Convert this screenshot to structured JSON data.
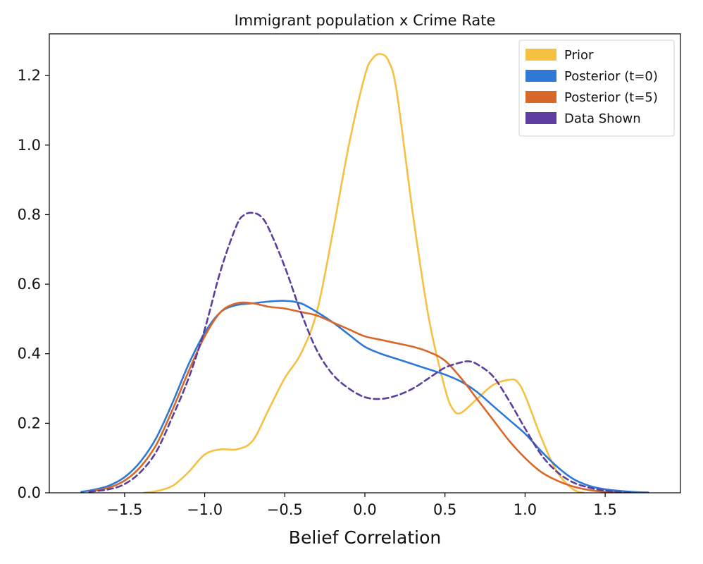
{
  "chart_data": {
    "type": "line",
    "title": "Immigrant population x Crime Rate",
    "xlabel": "Belief Correlation",
    "ylabel": "",
    "xlim": [
      -1.97,
      1.97
    ],
    "ylim": [
      0,
      1.32
    ],
    "xticks": [
      -1.5,
      -1.0,
      -0.5,
      0.0,
      0.5,
      1.0,
      1.5
    ],
    "xtick_labels": [
      "−1.5",
      "−1.0",
      "−0.5",
      "0.0",
      "0.5",
      "1.0",
      "1.5"
    ],
    "yticks": [
      0.0,
      0.2,
      0.4,
      0.6,
      0.8,
      1.0,
      1.2
    ],
    "ytick_labels": [
      "0.0",
      "0.2",
      "0.4",
      "0.6",
      "0.8",
      "1.0",
      "1.2"
    ],
    "grid": false,
    "legend": "top-right",
    "series": [
      {
        "name": "Prior",
        "color": "#F6C142",
        "dash": false,
        "x": [
          -1.38,
          -1.3,
          -1.2,
          -1.1,
          -1.0,
          -0.9,
          -0.8,
          -0.7,
          -0.6,
          -0.5,
          -0.4,
          -0.3,
          -0.2,
          -0.1,
          0.0,
          0.05,
          0.1,
          0.15,
          0.2,
          0.3,
          0.4,
          0.5,
          0.55,
          0.6,
          0.7,
          0.8,
          0.9,
          0.95,
          1.0,
          1.1,
          1.2,
          1.3,
          1.37
        ],
        "y": [
          0.0,
          0.005,
          0.02,
          0.06,
          0.11,
          0.125,
          0.125,
          0.15,
          0.24,
          0.33,
          0.4,
          0.52,
          0.75,
          1.0,
          1.2,
          1.25,
          1.262,
          1.24,
          1.15,
          0.8,
          0.5,
          0.3,
          0.24,
          0.23,
          0.27,
          0.31,
          0.325,
          0.32,
          0.28,
          0.16,
          0.06,
          0.01,
          0.0
        ]
      },
      {
        "name": "Posterior (t=0)",
        "color": "#2E78D6",
        "dash": false,
        "x": [
          -1.77,
          -1.7,
          -1.6,
          -1.5,
          -1.4,
          -1.3,
          -1.2,
          -1.1,
          -1.0,
          -0.9,
          -0.8,
          -0.7,
          -0.6,
          -0.5,
          -0.4,
          -0.3,
          -0.2,
          -0.1,
          0.0,
          0.1,
          0.2,
          0.3,
          0.4,
          0.5,
          0.6,
          0.7,
          0.8,
          0.9,
          1.0,
          1.1,
          1.2,
          1.3,
          1.4,
          1.5,
          1.6,
          1.7,
          1.77
        ],
        "y": [
          0.003,
          0.008,
          0.02,
          0.045,
          0.09,
          0.16,
          0.26,
          0.37,
          0.46,
          0.52,
          0.54,
          0.545,
          0.55,
          0.552,
          0.545,
          0.52,
          0.49,
          0.455,
          0.42,
          0.4,
          0.385,
          0.37,
          0.355,
          0.34,
          0.32,
          0.29,
          0.25,
          0.21,
          0.17,
          0.12,
          0.075,
          0.04,
          0.02,
          0.01,
          0.005,
          0.002,
          0.001
        ]
      },
      {
        "name": "Posterior (t=5)",
        "color": "#D8672A",
        "dash": false,
        "x": [
          -1.72,
          -1.6,
          -1.5,
          -1.4,
          -1.3,
          -1.2,
          -1.1,
          -1.0,
          -0.9,
          -0.8,
          -0.7,
          -0.6,
          -0.5,
          -0.4,
          -0.3,
          -0.2,
          -0.1,
          0.0,
          0.1,
          0.2,
          0.3,
          0.4,
          0.5,
          0.6,
          0.7,
          0.8,
          0.9,
          1.0,
          1.1,
          1.2,
          1.3,
          1.4,
          1.5,
          1.6,
          1.65
        ],
        "y": [
          0.003,
          0.015,
          0.035,
          0.075,
          0.14,
          0.24,
          0.35,
          0.45,
          0.52,
          0.545,
          0.545,
          0.535,
          0.53,
          0.52,
          0.51,
          0.49,
          0.47,
          0.45,
          0.44,
          0.43,
          0.42,
          0.405,
          0.38,
          0.33,
          0.27,
          0.21,
          0.15,
          0.1,
          0.06,
          0.035,
          0.018,
          0.008,
          0.003,
          0.001,
          0.0
        ]
      },
      {
        "name": "Data Shown",
        "color": "#5B3E9E",
        "dash": true,
        "x": [
          -1.72,
          -1.6,
          -1.5,
          -1.4,
          -1.3,
          -1.2,
          -1.1,
          -1.0,
          -0.9,
          -0.8,
          -0.75,
          -0.7,
          -0.65,
          -0.6,
          -0.5,
          -0.4,
          -0.3,
          -0.2,
          -0.1,
          0.0,
          0.1,
          0.2,
          0.3,
          0.4,
          0.5,
          0.6,
          0.65,
          0.7,
          0.8,
          0.9,
          1.0,
          1.1,
          1.2,
          1.3,
          1.4,
          1.5,
          1.6,
          1.67
        ],
        "y": [
          0.003,
          0.01,
          0.025,
          0.06,
          0.12,
          0.22,
          0.33,
          0.47,
          0.64,
          0.77,
          0.8,
          0.805,
          0.795,
          0.76,
          0.65,
          0.52,
          0.41,
          0.34,
          0.3,
          0.275,
          0.27,
          0.28,
          0.3,
          0.33,
          0.36,
          0.375,
          0.378,
          0.37,
          0.335,
          0.265,
          0.185,
          0.11,
          0.06,
          0.03,
          0.015,
          0.006,
          0.002,
          0.001
        ]
      }
    ]
  }
}
